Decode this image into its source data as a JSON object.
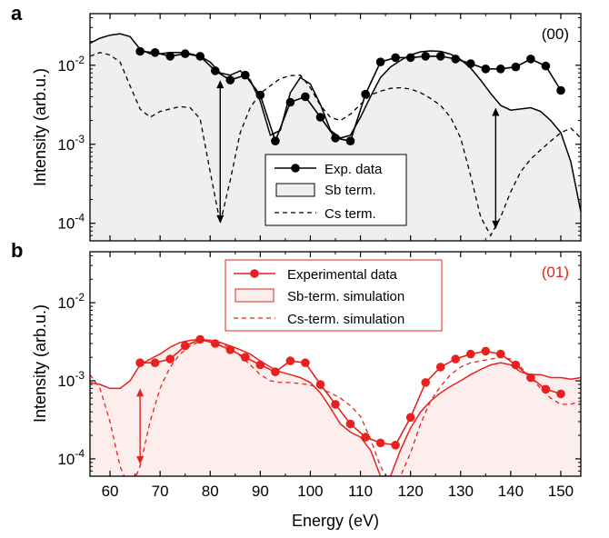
{
  "colors": {
    "panel_a": "#000000",
    "panel_b": "#e8201e",
    "fill_a": "#efefef",
    "fill_b": "#fdeeee"
  },
  "chart_data": [
    {
      "type": "line",
      "panel_label": "a",
      "annotation": "(00)",
      "ylabel": "Intensity (arb.u.)",
      "xlabel": "",
      "yscale": "log",
      "xlim": [
        56,
        154
      ],
      "ylim": [
        6e-05,
        0.045
      ],
      "yticks": [
        0.0001,
        0.001,
        0.01
      ],
      "yticklabels": [
        "10-4",
        "10-3",
        "10-2"
      ],
      "xticks": [
        60,
        70,
        80,
        90,
        100,
        110,
        120,
        130,
        140,
        150
      ],
      "legend": {
        "placement": "bottom-center",
        "entries": [
          "Exp. data",
          "Sb term.",
          "Cs term."
        ]
      },
      "series": [
        {
          "name": "Exp. data",
          "style": "line-markers",
          "x": [
            66,
            69,
            72,
            75,
            78,
            81,
            84,
            87,
            90,
            93,
            96,
            99,
            102,
            105,
            108,
            111,
            114,
            117,
            120,
            123,
            126,
            129,
            132,
            135,
            138,
            141,
            144,
            147,
            150
          ],
          "y": [
            0.015,
            0.0145,
            0.013,
            0.014,
            0.013,
            0.0085,
            0.0065,
            0.0075,
            0.0042,
            0.0011,
            0.0034,
            0.004,
            0.0022,
            0.0012,
            0.0011,
            0.0043,
            0.011,
            0.0125,
            0.0125,
            0.013,
            0.013,
            0.012,
            0.0105,
            0.009,
            0.009,
            0.0095,
            0.012,
            0.0098,
            0.0048
          ]
        },
        {
          "name": "Sb term.",
          "style": "filled-line",
          "x": [
            56,
            58,
            60,
            62,
            64,
            66,
            68,
            70,
            72,
            74,
            76,
            78,
            80,
            82,
            84,
            86,
            88,
            90,
            92,
            94,
            96,
            98,
            100,
            102,
            104,
            106,
            108,
            110,
            112,
            114,
            116,
            118,
            120,
            122,
            124,
            126,
            128,
            130,
            132,
            134,
            136,
            138,
            140,
            142,
            144,
            146,
            148,
            150,
            152,
            154
          ],
          "y": [
            0.019,
            0.022,
            0.024,
            0.025,
            0.023,
            0.016,
            0.014,
            0.014,
            0.0145,
            0.0145,
            0.014,
            0.013,
            0.011,
            0.008,
            0.0075,
            0.0085,
            0.0065,
            0.0035,
            0.0013,
            0.0015,
            0.0045,
            0.007,
            0.0058,
            0.0032,
            0.0015,
            0.0012,
            0.0013,
            0.0022,
            0.004,
            0.007,
            0.0095,
            0.0115,
            0.0135,
            0.0148,
            0.0152,
            0.015,
            0.0138,
            0.0118,
            0.0092,
            0.0065,
            0.0044,
            0.0031,
            0.0027,
            0.0028,
            0.0029,
            0.0026,
            0.002,
            0.0014,
            0.0006,
            0.00014
          ]
        },
        {
          "name": "Cs term.",
          "style": "dashed-line",
          "x": [
            56,
            58,
            60,
            62,
            64,
            66,
            68,
            70,
            72,
            74,
            76,
            78,
            80,
            82,
            84,
            86,
            88,
            90,
            92,
            94,
            96,
            98,
            100,
            102,
            104,
            106,
            108,
            110,
            112,
            114,
            116,
            118,
            120,
            122,
            124,
            126,
            128,
            130,
            132,
            134,
            136,
            138,
            140,
            142,
            144,
            146,
            148,
            150,
            152,
            154
          ],
          "y": [
            0.013,
            0.0145,
            0.0135,
            0.011,
            0.0055,
            0.0028,
            0.0022,
            0.0026,
            0.0028,
            0.003,
            0.0029,
            0.0021,
            0.00045,
            0.0001,
            0.00035,
            0.0014,
            0.0029,
            0.0044,
            0.0055,
            0.0068,
            0.0074,
            0.0075,
            0.0052,
            0.0031,
            0.0022,
            0.002,
            0.0024,
            0.0032,
            0.0042,
            0.0047,
            0.0051,
            0.0052,
            0.005,
            0.0045,
            0.0038,
            0.0031,
            0.0022,
            0.0012,
            0.0004,
            0.00012,
            7e-05,
            0.00012,
            0.00025,
            0.00045,
            0.00065,
            0.00085,
            0.0011,
            0.0014,
            0.0016,
            0.0012
          ]
        }
      ],
      "arrows": [
        {
          "x": 82,
          "y_from": 0.0001,
          "y_to": 0.0065
        },
        {
          "x": 137,
          "y_from": 8.5e-05,
          "y_to": 0.0029
        }
      ]
    },
    {
      "type": "line",
      "panel_label": "b",
      "annotation": "(01)",
      "ylabel": "Intensity (arb.u.)",
      "xlabel": "Energy (eV)",
      "yscale": "log",
      "xlim": [
        56,
        154
      ],
      "ylim": [
        6e-05,
        0.045
      ],
      "yticks": [
        0.0001,
        0.001,
        0.01
      ],
      "yticklabels": [
        "10-4",
        "10-3",
        "10-2"
      ],
      "xticks": [
        60,
        70,
        80,
        90,
        100,
        110,
        120,
        130,
        140,
        150
      ],
      "legend": {
        "placement": "top-center",
        "entries": [
          "Experimental data",
          "Sb-term. simulation",
          "Cs-term. simulation"
        ]
      },
      "series": [
        {
          "name": "Experimental data",
          "style": "line-markers",
          "x": [
            66,
            69,
            72,
            75,
            78,
            81,
            84,
            87,
            90,
            93,
            96,
            99,
            102,
            105,
            108,
            111,
            114,
            117,
            120,
            123,
            126,
            129,
            132,
            135,
            138,
            141,
            144,
            147,
            150
          ],
          "y": [
            0.0017,
            0.0017,
            0.0019,
            0.0028,
            0.0034,
            0.003,
            0.0025,
            0.002,
            0.0016,
            0.0013,
            0.0018,
            0.0017,
            0.0009,
            0.0005,
            0.00028,
            0.00019,
            0.00016,
            0.00015,
            0.00034,
            0.00095,
            0.0015,
            0.0019,
            0.0022,
            0.0024,
            0.0022,
            0.0016,
            0.0011,
            0.00078,
            0.00068
          ]
        },
        {
          "name": "Sb-term. simulation",
          "style": "filled-line",
          "x": [
            56,
            58,
            60,
            62,
            64,
            66,
            68,
            70,
            72,
            74,
            76,
            78,
            80,
            82,
            84,
            86,
            88,
            90,
            92,
            94,
            96,
            98,
            100,
            102,
            104,
            106,
            108,
            110,
            112,
            114,
            116,
            118,
            120,
            122,
            124,
            126,
            128,
            130,
            132,
            134,
            136,
            138,
            140,
            142,
            144,
            146,
            148,
            150,
            152,
            154
          ],
          "y": [
            0.00095,
            0.0009,
            0.0008,
            0.0008,
            0.001,
            0.0016,
            0.0019,
            0.0022,
            0.0027,
            0.0031,
            0.0033,
            0.0034,
            0.0033,
            0.0031,
            0.0028,
            0.0025,
            0.0022,
            0.0018,
            0.0015,
            0.0013,
            0.0012,
            0.0011,
            0.00095,
            0.0007,
            0.00045,
            0.00028,
            0.00022,
            0.00019,
            0.00013,
            6e-05,
            6e-05,
            0.00013,
            0.00025,
            0.0004,
            0.00055,
            0.0007,
            0.00085,
            0.001,
            0.0012,
            0.0014,
            0.0016,
            0.0017,
            0.0016,
            0.0013,
            0.0012,
            0.0012,
            0.0011,
            0.0011,
            0.00105,
            0.0011
          ]
        },
        {
          "name": "Cs-term. simulation",
          "style": "dashed-line",
          "x": [
            56,
            58,
            60,
            62,
            64,
            66,
            68,
            70,
            72,
            74,
            76,
            78,
            80,
            82,
            84,
            86,
            88,
            90,
            92,
            94,
            96,
            98,
            100,
            102,
            104,
            106,
            108,
            110,
            112,
            114,
            116,
            118,
            120,
            122,
            124,
            126,
            128,
            130,
            132,
            134,
            136,
            138,
            140,
            142,
            144,
            146,
            148,
            150,
            152,
            154
          ],
          "y": [
            0.0012,
            0.0008,
            0.0003,
            8e-05,
            4e-05,
            8e-05,
            0.0003,
            0.0008,
            0.0015,
            0.0022,
            0.0028,
            0.0032,
            0.0033,
            0.0031,
            0.0026,
            0.0021,
            0.0016,
            0.0012,
            0.001,
            0.00095,
            0.00095,
            0.00092,
            0.00088,
            0.0008,
            0.0007,
            0.0006,
            0.00048,
            0.00035,
            0.00018,
            8e-05,
            5e-05,
            6e-05,
            0.00012,
            0.00028,
            0.00055,
            0.00085,
            0.0012,
            0.0015,
            0.0017,
            0.0018,
            0.0019,
            0.002,
            0.0019,
            0.0015,
            0.0011,
            0.0008,
            0.0006,
            0.0005,
            0.0005,
            0.00055
          ]
        }
      ],
      "arrows": [
        {
          "x": 66,
          "y_from": 8.5e-05,
          "y_to": 0.0008
        }
      ]
    }
  ]
}
